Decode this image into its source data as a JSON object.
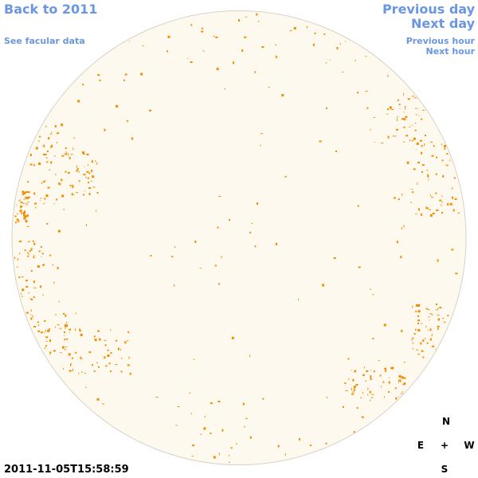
{
  "links": {
    "back": "Back to 2011",
    "previous_day": "Previous day",
    "next_day": "Next day",
    "facular": "See facular data",
    "previous_hour": "Previous hour",
    "next_hour": "Next hour"
  },
  "timestamp": "2011-11-05T15:58:59",
  "compass": {
    "north": "N",
    "east": "E",
    "center": "+",
    "west": "W",
    "south": "S"
  }
}
